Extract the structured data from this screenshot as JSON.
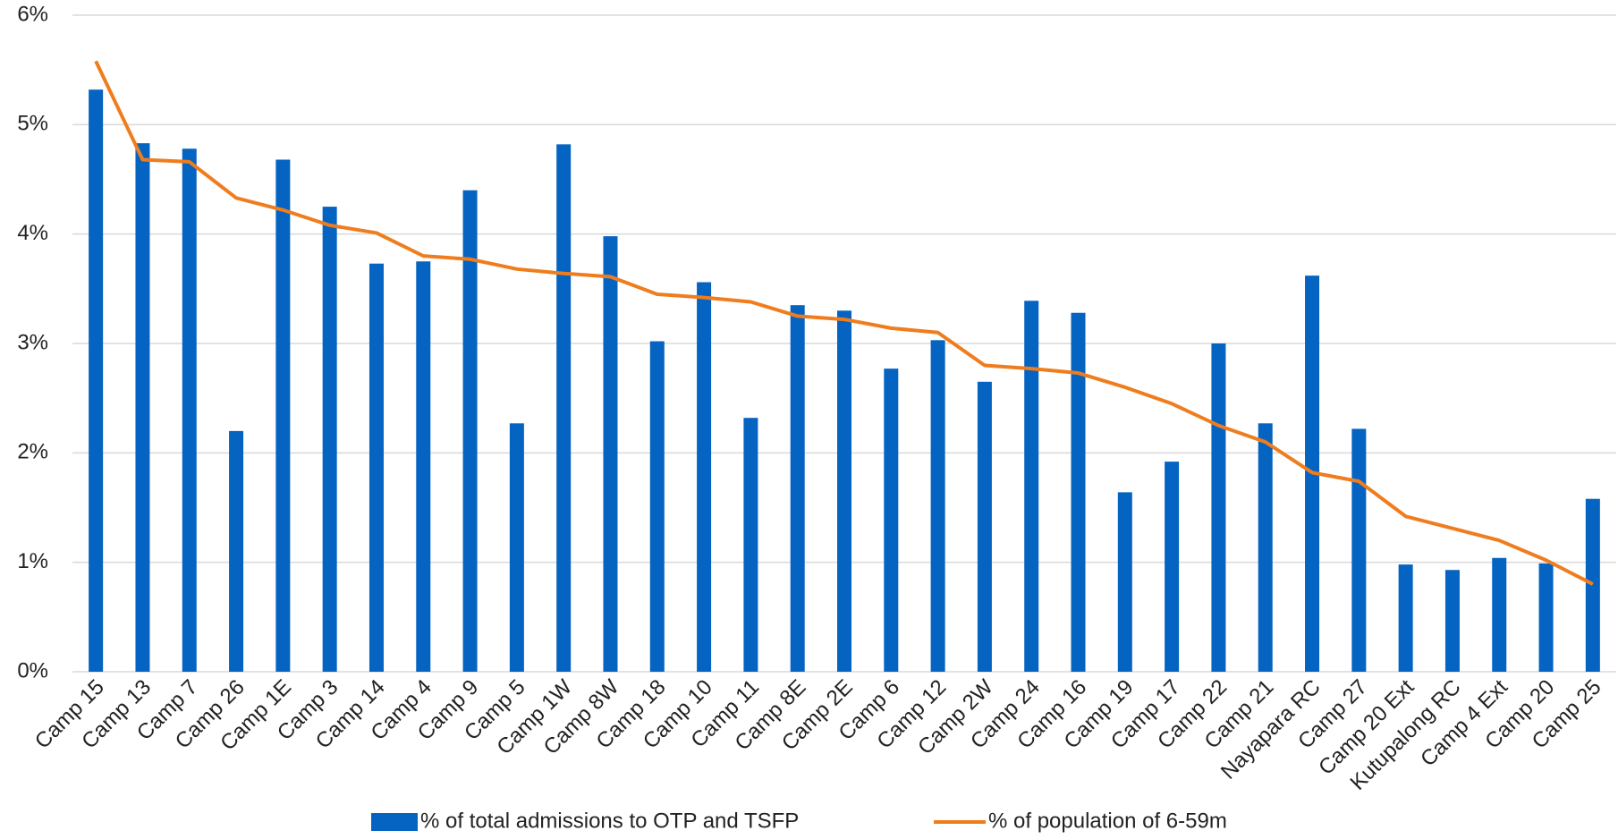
{
  "chart_data": {
    "type": "bar-line",
    "categories": [
      "Camp 15",
      "Camp 13",
      "Camp 7",
      "Camp 26",
      "Camp 1E",
      "Camp 3",
      "Camp 14",
      "Camp 4",
      "Camp 9",
      "Camp 5",
      "Camp 1W",
      "Camp 8W",
      "Camp 18",
      "Camp 10",
      "Camp 11",
      "Camp 8E",
      "Camp 2E",
      "Camp 6",
      "Camp 12",
      "Camp 2W",
      "Camp 24",
      "Camp 16",
      "Camp 19",
      "Camp 17",
      "Camp 22",
      "Camp 21",
      "Nayapara RC",
      "Camp 27",
      "Camp 20 Ext",
      "Kutupalong RC",
      "Camp 4 Ext",
      "Camp 20",
      "Camp 25"
    ],
    "series": [
      {
        "name": "% of total admissions to OTP and TSFP",
        "type": "bar",
        "color": "#0563c1",
        "values": [
          5.32,
          4.83,
          4.78,
          2.2,
          4.68,
          4.25,
          3.73,
          3.75,
          4.4,
          2.27,
          4.82,
          3.98,
          3.02,
          3.56,
          2.32,
          3.35,
          3.3,
          2.77,
          3.03,
          2.65,
          3.39,
          3.28,
          1.64,
          1.92,
          3.0,
          2.27,
          3.62,
          2.22,
          0.98,
          0.93,
          1.04,
          0.99,
          1.58
        ]
      },
      {
        "name": "% of population of 6-59m",
        "type": "line",
        "color": "#ef7d1e",
        "values": [
          5.58,
          4.68,
          4.66,
          4.33,
          4.22,
          4.08,
          4.01,
          3.8,
          3.77,
          3.68,
          3.64,
          3.61,
          3.45,
          3.42,
          3.38,
          3.25,
          3.22,
          3.14,
          3.1,
          2.8,
          2.77,
          2.73,
          2.6,
          2.45,
          2.25,
          2.1,
          1.82,
          1.74,
          1.42,
          1.31,
          1.2,
          1.02,
          0.8
        ]
      }
    ],
    "ylim": [
      0,
      6
    ],
    "yticks": [
      {
        "value": 0,
        "label": "0%"
      },
      {
        "value": 1,
        "label": "1%"
      },
      {
        "value": 2,
        "label": "2%"
      },
      {
        "value": 3,
        "label": "3%"
      },
      {
        "value": 4,
        "label": "4%"
      },
      {
        "value": 5,
        "label": "5%"
      },
      {
        "value": 6,
        "label": "6%"
      }
    ],
    "grid": true,
    "legend": "bottom"
  }
}
